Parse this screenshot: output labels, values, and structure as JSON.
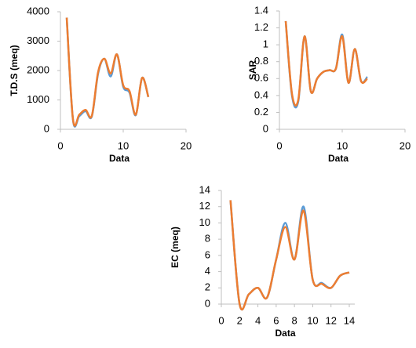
{
  "chart_data": [
    {
      "type": "line",
      "x_label": "Data",
      "y_label": "T.D.S (meq)",
      "x": [
        1,
        2,
        3,
        4,
        5,
        6,
        7,
        8,
        9,
        10,
        11,
        12,
        13,
        14
      ],
      "series": [
        {
          "color": "#5b9bd5",
          "values": [
            3800,
            320,
            450,
            620,
            440,
            1900,
            2400,
            1800,
            2550,
            1450,
            1250,
            480,
            1750,
            1100
          ]
        },
        {
          "color": "#ed7d31",
          "values": [
            3800,
            340,
            500,
            660,
            460,
            1950,
            2400,
            1900,
            2550,
            1500,
            1300,
            500,
            1750,
            1100
          ]
        }
      ],
      "xlim": [
        0,
        20
      ],
      "ylim": [
        0,
        4000
      ],
      "xticks": [
        0,
        10,
        20
      ],
      "yticks": [
        0,
        1000,
        2000,
        3000,
        4000
      ]
    },
    {
      "type": "line",
      "x_label": "Data",
      "y_label": "SAR",
      "x": [
        1,
        2,
        3,
        4,
        5,
        6,
        7,
        8,
        9,
        10,
        11,
        12,
        13,
        14
      ],
      "series": [
        {
          "color": "#5b9bd5",
          "values": [
            1.28,
            0.4,
            0.33,
            1.1,
            0.45,
            0.6,
            0.68,
            0.7,
            0.72,
            1.12,
            0.55,
            0.95,
            0.57,
            0.62
          ]
        },
        {
          "color": "#ed7d31",
          "values": [
            1.28,
            0.42,
            0.35,
            1.1,
            0.45,
            0.6,
            0.68,
            0.7,
            0.72,
            1.1,
            0.55,
            0.95,
            0.57,
            0.6
          ]
        }
      ],
      "xlim": [
        0,
        20
      ],
      "ylim": [
        0,
        1.4
      ],
      "xticks": [
        0,
        10,
        20
      ],
      "yticks": [
        0,
        0.2,
        0.4,
        0.6,
        0.8,
        1,
        1.2,
        1.4
      ]
    },
    {
      "type": "line",
      "x_label": "Data",
      "y_label": "EC (meq)",
      "x": [
        1,
        2,
        3,
        4,
        5,
        6,
        7,
        8,
        9,
        10,
        11,
        12,
        13,
        14
      ],
      "series": [
        {
          "color": "#5b9bd5",
          "values": [
            12.8,
            0,
            1.2,
            2,
            0.8,
            5.5,
            10,
            5.5,
            12,
            3,
            2.6,
            2,
            3.5,
            3.9
          ]
        },
        {
          "color": "#ed7d31",
          "values": [
            12.8,
            0,
            1.2,
            2,
            0.8,
            5.5,
            9.5,
            5.5,
            11.5,
            3,
            2.5,
            2,
            3.5,
            3.9
          ]
        }
      ],
      "xlim": [
        0,
        14
      ],
      "ylim": [
        0,
        14
      ],
      "xticks": [
        0,
        2,
        4,
        6,
        8,
        10,
        12,
        14
      ],
      "yticks": [
        0,
        2,
        4,
        6,
        8,
        10,
        12,
        14
      ]
    }
  ]
}
